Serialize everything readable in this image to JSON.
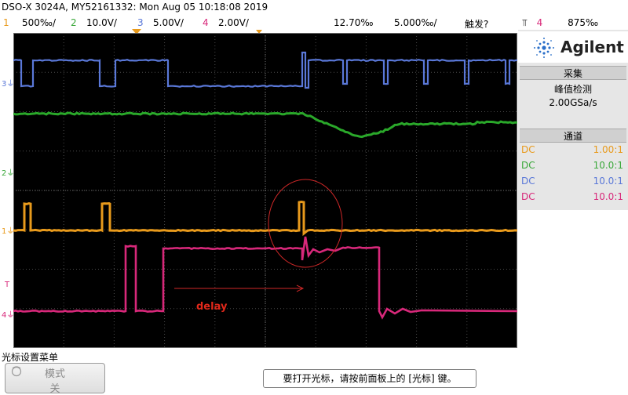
{
  "header": {
    "title": "DSO-X 3024A, MY52161332: Mon Aug 05 10:18:08 2019",
    "channels": [
      {
        "num": "1",
        "scale": "500‰/",
        "color": "#e89a1c"
      },
      {
        "num": "2",
        "scale": "10.0V/",
        "color": "#3aa83a"
      },
      {
        "num": "3",
        "scale": "5.00V/",
        "color": "#5a78d8"
      },
      {
        "num": "4",
        "scale": "2.00V/",
        "color": "#d8287a"
      }
    ],
    "time_pos": "12.70‰",
    "time_scale": "5.000‰/",
    "trigger_label": "触发?",
    "trigger_channel": "4",
    "trigger_level": "875‰"
  },
  "panel": {
    "brand": "Agilent",
    "acquire_title": "采集",
    "acquire_mode": "峰值检测",
    "sample_rate": "2.00GSa/s",
    "channels_title": "通道",
    "probes": [
      {
        "coupling": "DC",
        "ratio": "1.00:1",
        "color": "#e89a1c"
      },
      {
        "coupling": "DC",
        "ratio": "10.0:1",
        "color": "#3aa83a"
      },
      {
        "coupling": "DC",
        "ratio": "10.0:1",
        "color": "#5a78d8"
      },
      {
        "coupling": "DC",
        "ratio": "10.0:1",
        "color": "#d8287a"
      }
    ]
  },
  "markers": {
    "ch3": "3",
    "ch2": "2",
    "ch1": "1",
    "ch4": "4",
    "trig": "T"
  },
  "annotation": {
    "delay_text": "delay"
  },
  "footer": {
    "menu_label": "光标设置菜单",
    "mode_line1": "模式",
    "mode_line2": "关",
    "message": "要打开光标，请按前面板上的 [光标] 键。"
  }
}
